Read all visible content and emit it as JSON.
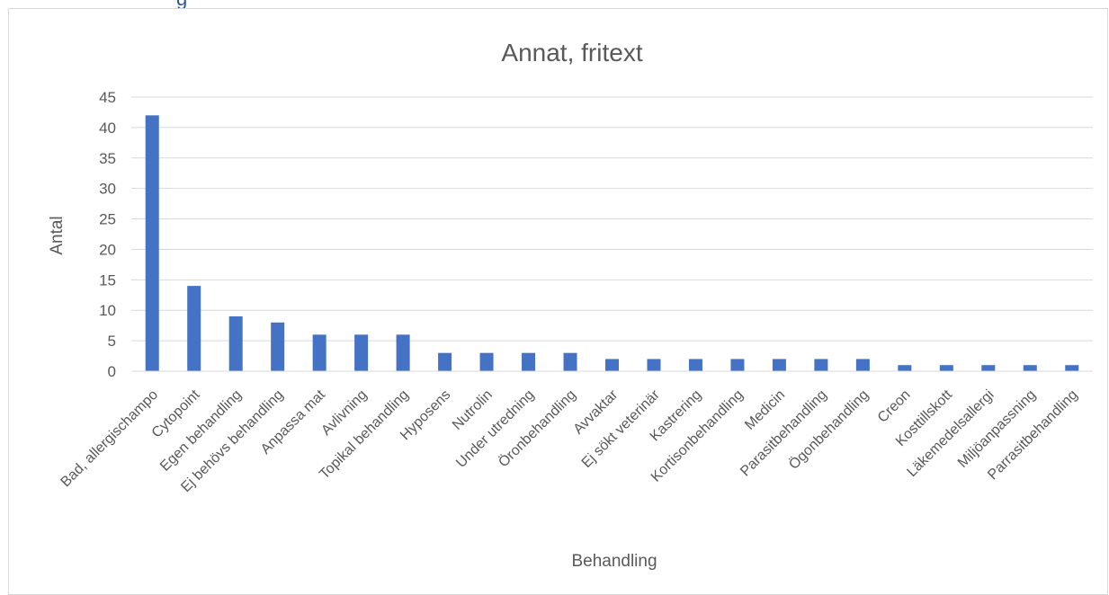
{
  "heading_fragment": "g",
  "chart_data": {
    "type": "bar",
    "title": "Annat, fritext",
    "xlabel": "Behandling",
    "ylabel": "Antal",
    "ylim": [
      0,
      45
    ],
    "yticks": [
      0,
      5,
      10,
      15,
      20,
      25,
      30,
      35,
      40,
      45
    ],
    "grid": true,
    "legend": "none",
    "bar_color": "#4472c4",
    "categories": [
      "Bad, allergischampo",
      "Cytopoint",
      "Egen behandling",
      "Ej behövs behandling",
      "Anpassa mat",
      "Avlivning",
      "Topikal behandling",
      "Hyposens",
      "Nutrolin",
      "Under utredning",
      "Öronbehandling",
      "Avvaktar",
      "Ej sökt veterinär",
      "Kastrering",
      "Kortisonbehandling",
      "Medicin",
      "Parasitbehandling",
      "Ögonbehandling",
      "Creon",
      "Kosttillskott",
      "Läkemedelsallergi",
      "Miljöanpassning",
      "Parrasitbehandling"
    ],
    "values": [
      42,
      14,
      9,
      8,
      6,
      6,
      6,
      3,
      3,
      3,
      3,
      2,
      2,
      2,
      2,
      2,
      2,
      2,
      1,
      1,
      1,
      1,
      1
    ]
  }
}
